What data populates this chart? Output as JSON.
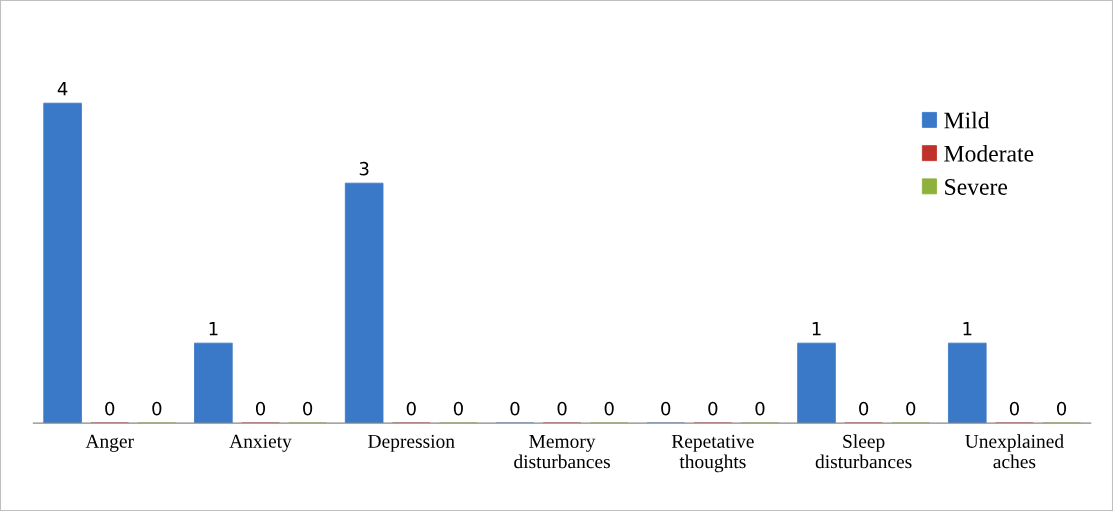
{
  "chart_data": {
    "type": "bar",
    "categories": [
      "Anger",
      "Anxiety",
      "Depression",
      "Memory\ndisturbances",
      "Repetative\nthoughts",
      "Sleep\ndisturbances",
      "Unexplained\naches"
    ],
    "series": [
      {
        "name": "Mild",
        "color": "#3a78c8",
        "values": [
          4,
          1,
          3,
          0,
          0,
          1,
          1
        ]
      },
      {
        "name": "Moderate",
        "color": "#c0312b",
        "values": [
          0,
          0,
          0,
          0,
          0,
          0,
          0
        ]
      },
      {
        "name": "Severe",
        "color": "#8db13a",
        "values": [
          0,
          0,
          0,
          0,
          0,
          0,
          0
        ]
      }
    ],
    "data_labels": true,
    "legend": "top right",
    "grid": false
  }
}
